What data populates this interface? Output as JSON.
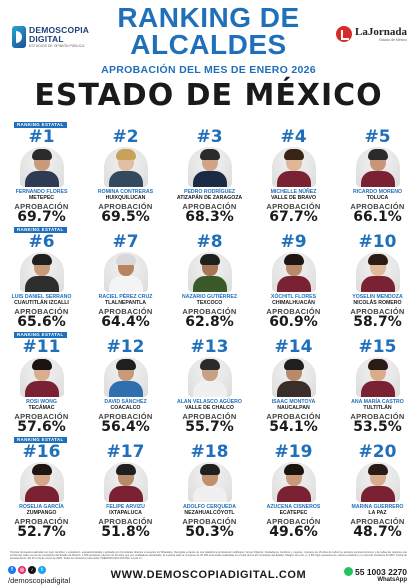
{
  "header": {
    "logo_left_main": "DEMOSCOPIA",
    "logo_left_main2": "DIGITAL",
    "logo_left_sub": "ESTUDIOS DE OPINIÓN PÚBLICA",
    "title_line1": "RANKING DE",
    "title_line2": "ALCALDES",
    "subtitle": "APROBACIÓN DEL MES DE ENERO 2026",
    "state": "ESTADO DE MÉXICO",
    "logo_right": "LaJornada",
    "logo_right_sub": "Estado de México"
  },
  "section_label": "RANKING ESTATAL",
  "approval_label": "APROBACIÓN",
  "alcaldes": [
    {
      "rank": "#1",
      "name": "FERNANDO FLORES",
      "municipality": "METEPEC",
      "approval": "69.7%",
      "skin": "#c99a7a",
      "hair": "#2b2b2b",
      "shirt": "#2f3b55"
    },
    {
      "rank": "#2",
      "name": "ROMINA CONTRERAS",
      "municipality": "HUIXQUILUCAN",
      "approval": "69.5%",
      "skin": "#e2bea2",
      "hair": "#c9a25a",
      "shirt": "#34495e"
    },
    {
      "rank": "#3",
      "name": "PEDRO RODRÍGUEZ",
      "municipality": "ATIZAPÁN DE ZARAGOZA",
      "approval": "68.3%",
      "skin": "#d0a485",
      "hair": "#2b2b2b",
      "shirt": "#1d2a44"
    },
    {
      "rank": "#4",
      "name": "MICHELLE NÚÑEZ",
      "municipality": "VALLE DE BRAVO",
      "approval": "67.7%",
      "skin": "#e0b698",
      "hair": "#3a2418",
      "shirt": "#7a2233"
    },
    {
      "rank": "#5",
      "name": "RICARDO MORENO",
      "municipality": "TOLUCA",
      "approval": "66.1%",
      "skin": "#c9957a",
      "hair": "#2b2b2b",
      "shirt": "#7a2233"
    },
    {
      "rank": "#6",
      "name": "LUIS DANIEL SERRANO",
      "municipality": "CUAUTITLÁN IZCALLI",
      "approval": "65.6%",
      "skin": "#c99a7a",
      "hair": "#1f1f1f",
      "shirt": "#2e2e2e"
    },
    {
      "rank": "#7",
      "name": "RACIEL PÉREZ CRUZ",
      "municipality": "TLALNEPANTLA",
      "approval": "64.4%",
      "skin": "#b88460",
      "hair": "#d8d8d8",
      "shirt": "#f4f4f4"
    },
    {
      "rank": "#8",
      "name": "NAZARIO GUTIÉRREZ",
      "municipality": "TEXCOCO",
      "approval": "62.8%",
      "skin": "#a87556",
      "hair": "#1f1f1f",
      "shirt": "#3b5a2a"
    },
    {
      "rank": "#9",
      "name": "XÓCHITL FLORES",
      "municipality": "CHIMALHUACÁN",
      "approval": "60.9%",
      "skin": "#b98a6a",
      "hair": "#1f1512",
      "shirt": "#7a2233"
    },
    {
      "rank": "#10",
      "name": "YOSELIN MENDOZA",
      "municipality": "NICOLÁS ROMERO",
      "approval": "58.7%",
      "skin": "#e1b99b",
      "hair": "#2a1b14",
      "shirt": "#7a2233"
    },
    {
      "rank": "#11",
      "name": "ROSI WONG",
      "municipality": "TECÁMAC",
      "approval": "57.6%",
      "skin": "#d9ae8f",
      "hair": "#1d1410",
      "shirt": "#7a2233"
    },
    {
      "rank": "#12",
      "name": "DAVID SÁNCHEZ",
      "municipality": "COACALCO",
      "approval": "56.4%",
      "skin": "#c99a7a",
      "hair": "#1f1f1f",
      "shirt": "#2f6fb0"
    },
    {
      "rank": "#13",
      "name": "ALAN VELASCO AGÜERO",
      "municipality": "VALLE DE CHALCO",
      "approval": "55.7%",
      "skin": "#caa084",
      "hair": "#2b2b2b",
      "shirt": "#f0f0f0"
    },
    {
      "rank": "#14",
      "name": "ISAAC MONTOYA",
      "municipality": "NAUCALPAN",
      "approval": "54.1%",
      "skin": "#b88a6a",
      "hair": "#1f1f1f",
      "shirt": "#3a2e2a"
    },
    {
      "rank": "#15",
      "name": "ANA MARÍA CASTRO",
      "municipality": "TULTITLÁN",
      "approval": "53.5%",
      "skin": "#d7ad8c",
      "hair": "#2a1b14",
      "shirt": "#7a2233"
    },
    {
      "rank": "#16",
      "name": "ROSELIA GARCÍA",
      "municipality": "ZUMPANGO",
      "approval": "52.7%",
      "skin": "#d2a687",
      "hair": "#1f1512",
      "shirt": "#7a2233"
    },
    {
      "rank": "#17",
      "name": "FELIPE ARVIZU",
      "municipality": "IXTAPALUCA",
      "approval": "51.8%",
      "skin": "#b98a6a",
      "hair": "#1f1f1f",
      "shirt": "#7a2233"
    },
    {
      "rank": "#18",
      "name": "ADOLFO CERQUEDA",
      "municipality": "NEZAHUALCÓYOTL",
      "approval": "50.3%",
      "skin": "#c2906f",
      "hair": "#1f1f1f",
      "shirt": "#f0f0f0"
    },
    {
      "rank": "#19",
      "name": "AZUCENA CISNEROS",
      "municipality": "ECATEPEC",
      "approval": "49.6%",
      "skin": "#c99a7a",
      "hair": "#1d1410",
      "shirt": "#7a2233"
    },
    {
      "rank": "#20",
      "name": "MARINA GUERRERO",
      "municipality": "LA PAZ",
      "approval": "48.7%",
      "skin": "#d7ad8c",
      "hair": "#2a1b14",
      "shirt": "#7a2233"
    }
  ],
  "disclaimer": "Técnica: Encuesta realizada con rigor científico y estadístico, autoadministrada y aplicada con formularios directos a usuarios de WhatsApp. Recogida a través de una plataforma profesional multilingüe. Grupo Objetivo: Ciudadanos, hombres y mujeres, mayores de 18 años de todos los estratos socioeconómicos y de todas las regiones que conforman cada uno de los municipios del Estado de México. 1.000 personas mayores de 18 años que son ciudadanos del Estado, la muestra total se compone de 20.000 entrevistas realizadas en el total de los 20 municipios del Estado. Margen de error +/- 3.8% bajo supuestos de máxima variancia y un nivel de confianza de 95%. Fecha de levantamiento: del 20 al 31 de enero de 2026. Todos los derechos reservados ©DEMOSCOPIA DIGITAL S.A de cv.",
  "footer": {
    "handle": "/demoscopiadigital",
    "site": "WWW.DEMOSCOPIADIGITAL.COM",
    "whatsapp_number": "55 1003 2270",
    "whatsapp_label": "WhatsApp"
  },
  "colors": {
    "accent": "#1f6fba",
    "dark": "#1a1a1a",
    "brand_red": "#d72a2a",
    "whatsapp": "#25c15c"
  }
}
